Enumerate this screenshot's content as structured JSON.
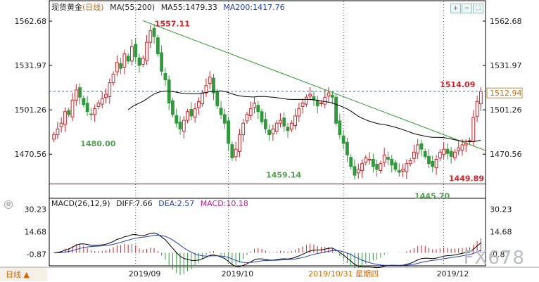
{
  "header": {
    "symbol": "现货黄金",
    "period": "(日线)",
    "ma_label": "MA(55,200)",
    "ma55": "MA55:1479.33",
    "ma200": "MA200:1417.76"
  },
  "macd_header": {
    "label": "MACD(26,12,9)",
    "diff": "DIFF:7.66",
    "dea": "DEA:2.57",
    "macd": "MACD:10.18"
  },
  "period_button": "日线 ▲",
  "watermark": "FX678",
  "colors": {
    "up": "#d0242a",
    "down": "#2f9a3a",
    "ma55": "#000000",
    "ma200": "#2040c0",
    "trend": "#2a9a2a",
    "support": "#c00000",
    "dash": "#2a6ad6",
    "annot": "#50a050",
    "annotRed": "#d0242a"
  },
  "chart_data": {
    "type": "candlestick",
    "price_axis_ticks": [
      "1562.68",
      "1531.97",
      "1501.26",
      "1470.56"
    ],
    "price_ylim": [
      1440,
      1570
    ],
    "macd_axis_ticks": [
      "30.23",
      "14.68",
      "-0.87"
    ],
    "macd_ylim": [
      -9,
      34
    ],
    "x_labels": [
      "2019/09",
      "2019/10",
      "2019/10/31 星期四",
      "2019/12"
    ],
    "current_price": "1512.94",
    "annotations": [
      {
        "text": "1557.11",
        "value": 1557.11,
        "color": "red"
      },
      {
        "text": "1480.00",
        "value": 1480.0,
        "color": "green"
      },
      {
        "text": "1459.14",
        "value": 1459.14,
        "color": "green"
      },
      {
        "text": "1445.70",
        "value": 1445.7,
        "color": "green"
      },
      {
        "text": "1514.09",
        "value": 1514.09,
        "color": "red"
      },
      {
        "text": "1449.89",
        "value": 1449.89,
        "color": "red"
      }
    ],
    "support_level": 1449.89,
    "dashed_level": 1514.09,
    "trendline": [
      1563,
      1476
    ],
    "closes": [
      1484,
      1488,
      1492,
      1500,
      1498,
      1508,
      1515,
      1510,
      1505,
      1500,
      1498,
      1502,
      1506,
      1509,
      1512,
      1520,
      1526,
      1534,
      1530,
      1540,
      1535,
      1545,
      1538,
      1532,
      1537,
      1548,
      1556,
      1552,
      1540,
      1528,
      1522,
      1506,
      1498,
      1492,
      1488,
      1494,
      1500,
      1497,
      1502,
      1507,
      1513,
      1518,
      1524,
      1513,
      1504,
      1498,
      1492,
      1478,
      1468,
      1474,
      1484,
      1492,
      1498,
      1502,
      1506,
      1500,
      1493,
      1488,
      1484,
      1488,
      1492,
      1494,
      1490,
      1487,
      1492,
      1497,
      1502,
      1506,
      1510,
      1512,
      1508,
      1504,
      1506,
      1510,
      1513,
      1510,
      1492,
      1484,
      1478,
      1470,
      1462,
      1456,
      1460,
      1464,
      1468,
      1467,
      1462,
      1460,
      1464,
      1470,
      1467,
      1463,
      1460,
      1458,
      1460,
      1464,
      1466,
      1472,
      1477,
      1474,
      1469,
      1464,
      1462,
      1467,
      1472,
      1474,
      1471,
      1469,
      1472,
      1475,
      1477,
      1478,
      1480,
      1496,
      1507,
      1514
    ]
  }
}
